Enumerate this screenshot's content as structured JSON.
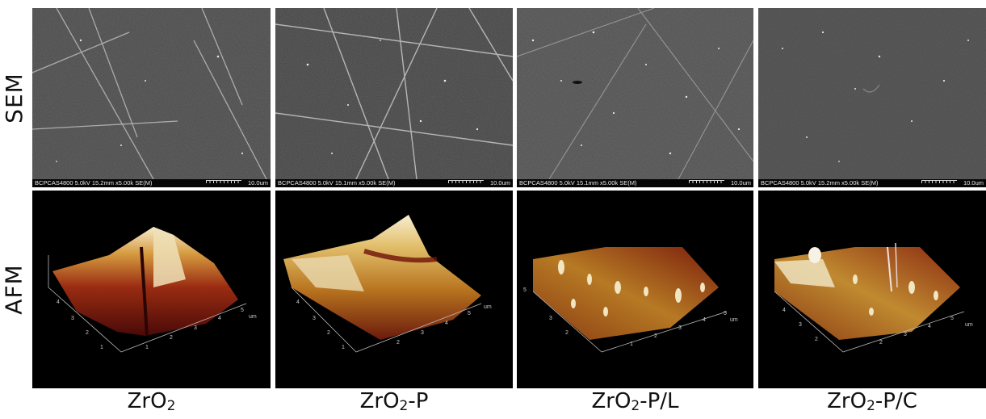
{
  "row_labels": {
    "sem": "SEM",
    "afm": "AFM"
  },
  "panels": [
    {
      "sem_info": "BCPCAS4800 5.0kV 15.2mm x5.00k SE(M)",
      "sem_scale": "10.0um",
      "cap_main": "ZrO",
      "cap_sub": "2",
      "cap_suffix": ""
    },
    {
      "sem_info": "BCPCAS4800 5.0kV 15.1mm x5.00k SE(M)",
      "sem_scale": "10.0um",
      "cap_main": "ZrO",
      "cap_sub": "2",
      "cap_suffix": "-P"
    },
    {
      "sem_info": "BCPCAS4800 5.0kV 15.1mm x5.00k SE(M)",
      "sem_scale": "10.0um",
      "cap_main": "ZrO",
      "cap_sub": "2",
      "cap_suffix": "-P/L"
    },
    {
      "sem_info": "BCPCAS4800 5.0kV 15.2mm x5.00k SE(M)",
      "sem_scale": "10.0um",
      "cap_main": "ZrO",
      "cap_sub": "2",
      "cap_suffix": "-P/C"
    }
  ],
  "afm_axis": {
    "unit": "um",
    "ticks": [
      "1",
      "2",
      "3",
      "4",
      "5"
    ]
  },
  "colors": {
    "background": "#ffffff",
    "sem_gray": "#474747",
    "afm_dark": "#5a0d0a",
    "afm_mid": "#b46a22",
    "afm_light": "#f6e9c4"
  }
}
